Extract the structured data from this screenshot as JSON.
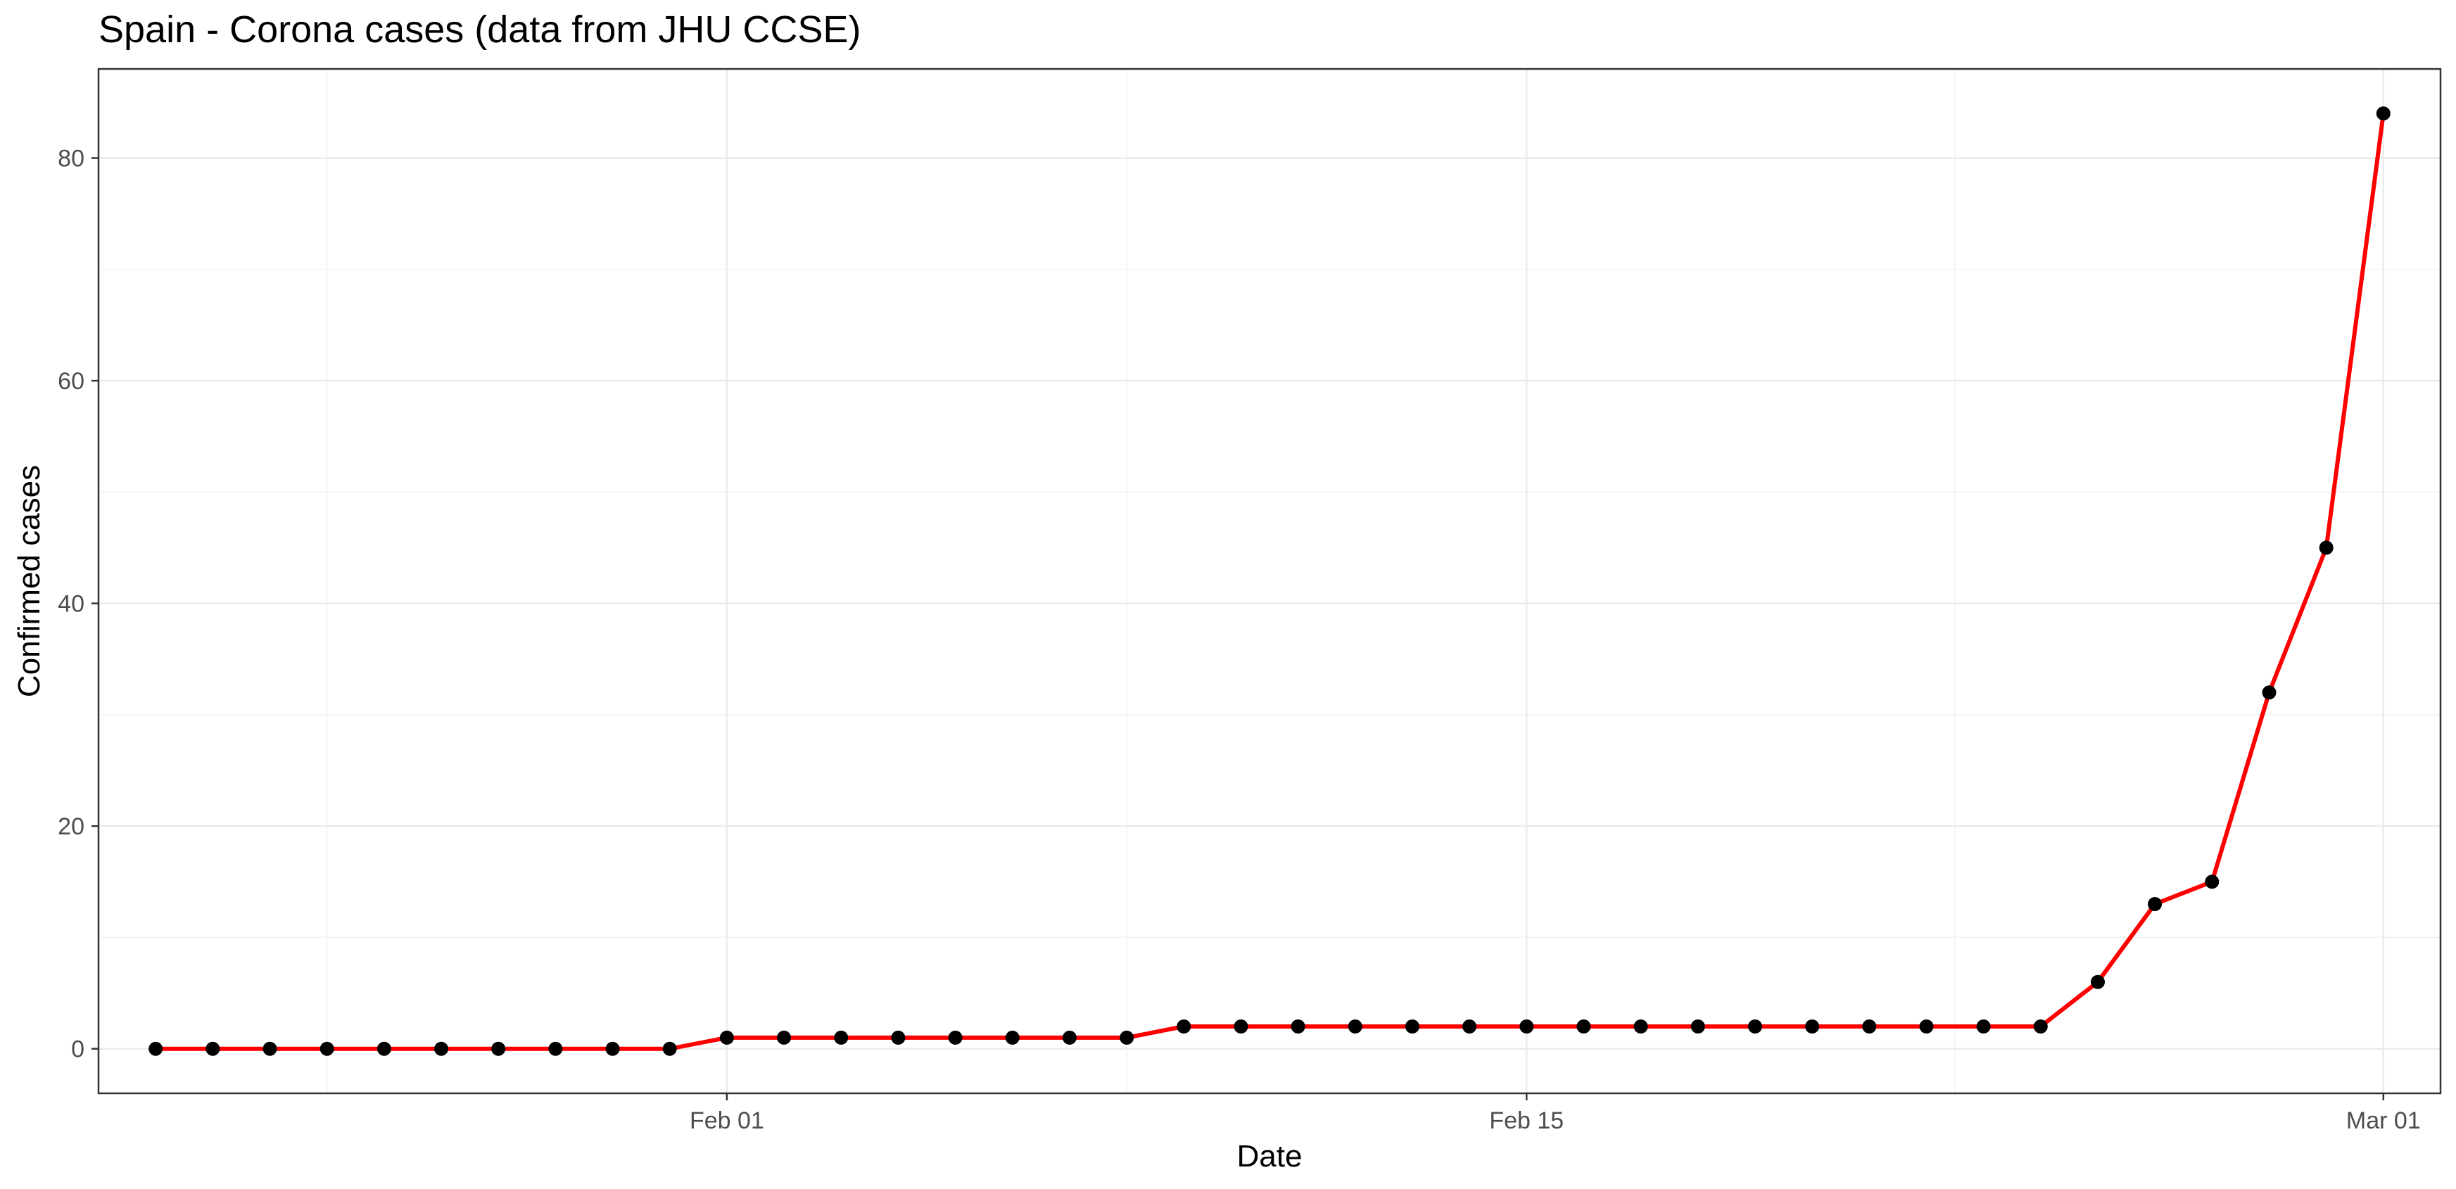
{
  "chart_data": {
    "type": "line",
    "title": "Spain - Corona cases (data from JHU CCSE)",
    "xlabel": "Date",
    "ylabel": "Confirmed cases",
    "x_scale": "date",
    "xlim": [
      "2020-01-21",
      "2020-03-02"
    ],
    "ylim": [
      -4,
      88
    ],
    "x_ticks": [
      "Feb 01",
      "Feb 15",
      "Mar 01"
    ],
    "x_tick_dates": [
      "2020-02-01",
      "2020-02-15",
      "2020-03-01"
    ],
    "y_ticks": [
      0,
      20,
      40,
      60,
      80
    ],
    "grid": true,
    "line_color": "#ff0000",
    "point_color": "#000000",
    "series": [
      {
        "x": [
          "2020-01-22",
          "2020-01-23",
          "2020-01-24",
          "2020-01-25",
          "2020-01-26",
          "2020-01-27",
          "2020-01-28",
          "2020-01-29",
          "2020-01-30",
          "2020-01-31",
          "2020-02-01",
          "2020-02-02",
          "2020-02-03",
          "2020-02-04",
          "2020-02-05",
          "2020-02-06",
          "2020-02-07",
          "2020-02-08",
          "2020-02-09",
          "2020-02-10",
          "2020-02-11",
          "2020-02-12",
          "2020-02-13",
          "2020-02-14",
          "2020-02-15",
          "2020-02-16",
          "2020-02-17",
          "2020-02-18",
          "2020-02-19",
          "2020-02-20",
          "2020-02-21",
          "2020-02-22",
          "2020-02-23",
          "2020-02-24",
          "2020-02-25",
          "2020-02-26",
          "2020-02-27",
          "2020-02-28",
          "2020-02-29",
          "2020-03-01"
        ],
        "y": [
          0,
          0,
          0,
          0,
          0,
          0,
          0,
          0,
          0,
          0,
          1,
          1,
          1,
          1,
          1,
          1,
          1,
          1,
          2,
          2,
          2,
          2,
          2,
          2,
          2,
          2,
          2,
          2,
          2,
          2,
          2,
          2,
          2,
          2,
          6,
          13,
          15,
          32,
          45,
          84
        ]
      }
    ]
  }
}
